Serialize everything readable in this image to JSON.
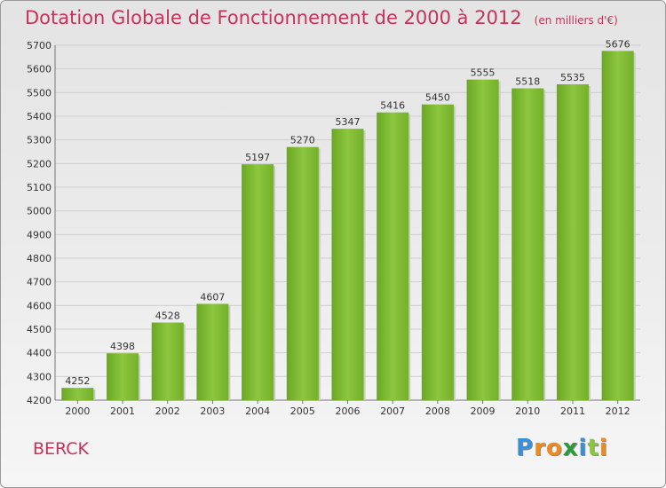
{
  "chart_data": {
    "type": "bar",
    "title": "Dotation Globale de Fonctionnement de 2000 à 2012",
    "subtitle": "(en milliers d'€)",
    "categories": [
      "2000",
      "2001",
      "2002",
      "2003",
      "2004",
      "2005",
      "2006",
      "2007",
      "2008",
      "2009",
      "2010",
      "2011",
      "2012"
    ],
    "values": [
      4252,
      4398,
      4528,
      4607,
      5197,
      5270,
      5347,
      5416,
      5450,
      5555,
      5518,
      5535,
      5676
    ],
    "ylim": [
      4200,
      5700
    ],
    "yticks": [
      4200,
      4300,
      4400,
      4500,
      4600,
      4700,
      4800,
      4900,
      5000,
      5100,
      5200,
      5300,
      5400,
      5500,
      5600,
      5700
    ],
    "grid": true,
    "bar_color": "#7dbb2e"
  },
  "footer": {
    "commune": "BERCK",
    "logo_letters": [
      "P",
      "r",
      "o",
      "x",
      "i",
      "t",
      "i"
    ],
    "logo_colors": [
      "#3a8fd6",
      "#f08a1c",
      "#f08a1c",
      "#2b9a3a",
      "#3a8fd6",
      "#8cc63f",
      "#f08a1c"
    ]
  }
}
